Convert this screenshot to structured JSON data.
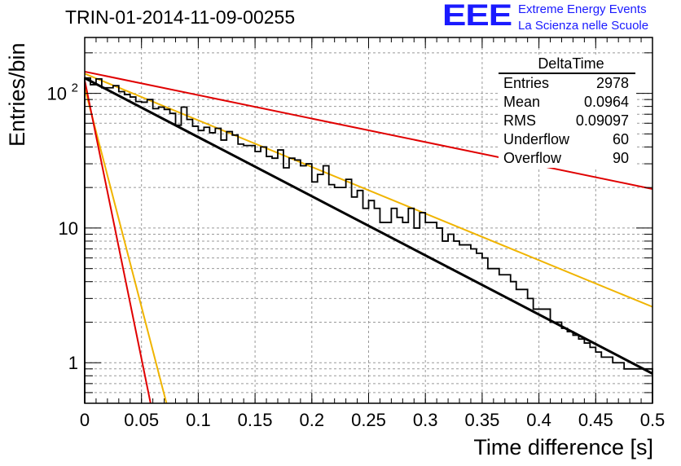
{
  "header": {
    "title": "TRIN-01-2014-11-09-00255",
    "brand_mark": "EEE",
    "brand_line1": "Extreme Energy Events",
    "brand_line2": "La Scienza nelle Scuole"
  },
  "stats_box": {
    "title": "DeltaTime",
    "rows": [
      {
        "label": "Entries",
        "value": "2978"
      },
      {
        "label": "Mean",
        "value": "0.0964"
      },
      {
        "label": "RMS",
        "value": "0.09097"
      },
      {
        "label": "Underflow",
        "value": "60"
      },
      {
        "label": "Overflow",
        "value": "90"
      }
    ]
  },
  "chart_data": {
    "type": "histogram",
    "title": "TRIN-01-2014-11-09-00255",
    "xlabel": "Time difference [s]",
    "ylabel": "Entries/bin",
    "xlim": [
      0,
      0.5
    ],
    "ylim": [
      0.5,
      260
    ],
    "yscale": "log",
    "grid": true,
    "x_ticks": [
      "0",
      "0.05",
      "0.1",
      "0.15",
      "0.2",
      "0.25",
      "0.3",
      "0.35",
      "0.4",
      "0.45",
      "0.5"
    ],
    "y_ticks": [
      {
        "value": 1,
        "label": "1"
      },
      {
        "value": 10,
        "label": "10"
      },
      {
        "value": 100,
        "label": "10",
        "exp": "2"
      }
    ],
    "bin_width": 0.005,
    "histogram": [
      130,
      116,
      128,
      110,
      110,
      114,
      103,
      98,
      94,
      87,
      86,
      90,
      77,
      79,
      76,
      71,
      58,
      79,
      64,
      57,
      53,
      56,
      51,
      55,
      45,
      52,
      49,
      42,
      41,
      41,
      37,
      40,
      34,
      33,
      38,
      28,
      33,
      32,
      29,
      30,
      22,
      25,
      29,
      21,
      20,
      20,
      23,
      17,
      19,
      14,
      16,
      14,
      11,
      11,
      14,
      12,
      11,
      14,
      10,
      13,
      11,
      11,
      10,
      8,
      9,
      8,
      7.5,
      7.5,
      7,
      6.5,
      6,
      5,
      5,
      4.5,
      4.5,
      4,
      3.5,
      3.5,
      3,
      2.5,
      2.5,
      2.5,
      2,
      2,
      1.8,
      1.7,
      1.6,
      1.5,
      1.4,
      1.3,
      1.2,
      1.1,
      1.1,
      1.0,
      1.0,
      0.9,
      0.9,
      0.9,
      0.9,
      0.9
    ],
    "fits": [
      {
        "color": "#000000",
        "x": [
          0,
          0.5
        ],
        "y": [
          130,
          0.83
        ]
      },
      {
        "color": "#f0b400",
        "x": [
          0,
          0.5
        ],
        "y": [
          140,
          2.6
        ]
      },
      {
        "color": "#e00000",
        "x": [
          0,
          0.5
        ],
        "y": [
          145,
          19.5
        ]
      },
      {
        "color": "#f0b400",
        "x": [
          0,
          0.072
        ],
        "y": [
          110,
          0.5
        ]
      },
      {
        "color": "#e00000",
        "x": [
          0,
          0.058
        ],
        "y": [
          125,
          0.5
        ]
      }
    ]
  }
}
